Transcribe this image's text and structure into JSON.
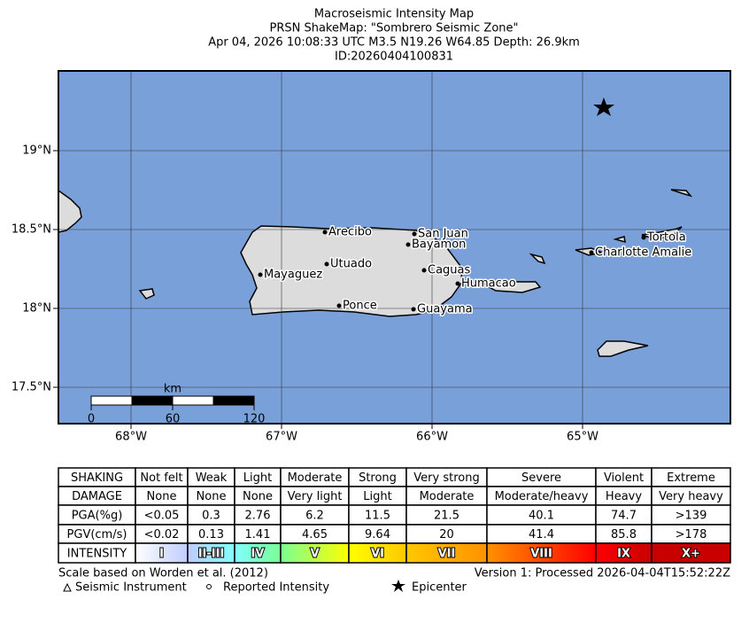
{
  "title": [
    "Macroseismic Intensity Map",
    "PRSN ShakeMap: \"Sombrero Seismic Zone\"",
    "Apr 04, 2026 10:08:33 UTC M3.5 N19.26 W64.85 Depth: 26.9km",
    "ID:20260404100831"
  ],
  "map": {
    "lat_labels": [
      "19°N",
      "18.5°N",
      "18°N",
      "17.5°N"
    ],
    "lon_labels": [
      "68°W",
      "67°W",
      "66°W",
      "65°W"
    ],
    "cities": [
      "Arecibo",
      "San Juan",
      "Bayamon",
      "Utuado",
      "Caguas",
      "Mayaguez",
      "Humacao",
      "Ponce",
      "Guayama",
      "Tortola",
      "Charlotte Amalie"
    ],
    "scale_bar": {
      "unit": "km",
      "labels": [
        "0",
        "60",
        "120"
      ]
    }
  },
  "table": {
    "rows": [
      [
        "SHAKING",
        "Not felt",
        "Weak",
        "Light",
        "Moderate",
        "Strong",
        "Very strong",
        "Severe",
        "Violent",
        "Extreme"
      ],
      [
        "DAMAGE",
        "None",
        "None",
        "None",
        "Very light",
        "Light",
        "Moderate",
        "Moderate/heavy",
        "Heavy",
        "Very heavy"
      ],
      [
        "PGA(%g)",
        "<0.05",
        "0.3",
        "2.76",
        "6.2",
        "11.5",
        "21.5",
        "40.1",
        "74.7",
        ">139"
      ],
      [
        "PGV(cm/s)",
        "<0.02",
        "0.13",
        "1.41",
        "4.65",
        "9.64",
        "20",
        "41.4",
        "85.8",
        ">178"
      ],
      [
        "INTENSITY",
        "I",
        "II-III",
        "IV",
        "V",
        "VI",
        "VII",
        "VIII",
        "IX",
        "X+"
      ]
    ]
  },
  "footer": {
    "scale_note": "Scale based on Worden et al. (2012)",
    "version": "Version 1: Processed 2026-04-04T15:52:22Z"
  },
  "legend": [
    "Seismic Instrument",
    "Reported Intensity",
    "Epicenter"
  ]
}
